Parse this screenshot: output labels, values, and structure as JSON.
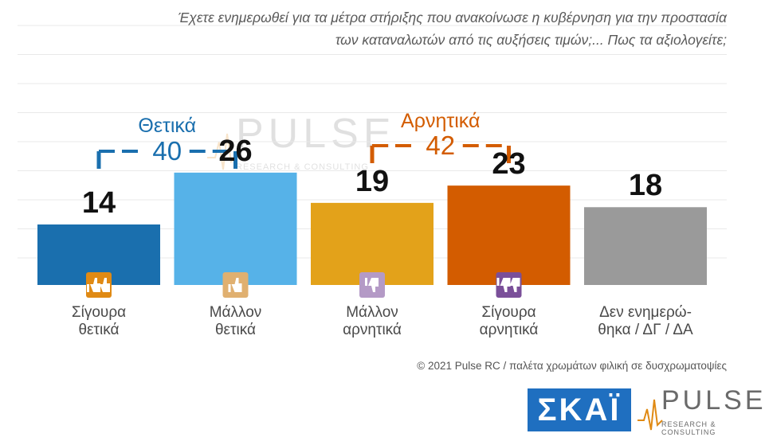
{
  "question": "Έχετε ενημερωθεί για τα μέτρα στήριξης που ανακοίνωσε η κυβέρνηση για την προστασία των καταναλωτών από τις αυξήσεις τιμών;... Πως τα αξιολογείτε;",
  "chart_data": {
    "type": "bar",
    "categories": [
      "Σίγουρα θετικά",
      "Μάλλον θετικά",
      "Μάλλον αρνητικά",
      "Σίγουρα αρνητικά",
      "Δεν ενημερώ- θηκα / ΔΓ / ΔΑ"
    ],
    "category_lines": [
      [
        "Σίγουρα",
        "θετικά"
      ],
      [
        "Μάλλον",
        "θετικά"
      ],
      [
        "Μάλλον",
        "αρνητικά"
      ],
      [
        "Σίγουρα",
        "αρνητικά"
      ],
      [
        "Δεν ενημερώ-",
        "θηκα / ΔΓ / ΔΑ"
      ]
    ],
    "values": [
      14,
      26,
      19,
      23,
      18
    ],
    "value_labels": [
      "14",
      "26",
      "19",
      "23",
      "18"
    ],
    "colors": [
      "#1a6fae",
      "#56b2e8",
      "#e3a21a",
      "#d35c00",
      "#9a9a9a"
    ],
    "icons": [
      "two-thumbs-up-icon",
      "thumb-up-icon",
      "thumb-down-icon",
      "two-thumbs-down-icon",
      ""
    ],
    "icon_colors": [
      "#e08a14",
      "#e0b070",
      "#b49ac6",
      "#7a4f99",
      ""
    ],
    "ylim": [
      0,
      30
    ],
    "grid": true,
    "groups": [
      {
        "title": "Θετικά",
        "total": "40",
        "color": "#1a6fae",
        "span": [
          0,
          1
        ]
      },
      {
        "title": "Αρνητικά",
        "total": "42",
        "color": "#d35c00",
        "span": [
          2,
          3
        ]
      }
    ]
  },
  "footer": {
    "copyright": "© 2021 Pulse RC  /  παλέτα χρωμάτων φιλική σε δυσχρωματοψίες",
    "skai_logo": "ΣΚΑΪ",
    "pulse_logo": "PULSE",
    "pulse_sub": "RESEARCH & CONSULTING"
  }
}
